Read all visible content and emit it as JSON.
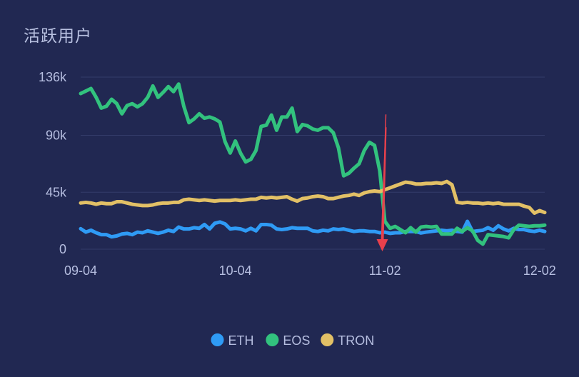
{
  "chart_data": {
    "type": "line",
    "title": "活跃用户",
    "xlabel": "",
    "ylabel": "",
    "ylim": [
      0,
      136000
    ],
    "xlim": [
      0,
      90
    ],
    "y_ticks": [
      {
        "value": 0,
        "label": "0"
      },
      {
        "value": 45000,
        "label": "45k"
      },
      {
        "value": 90000,
        "label": "90k"
      },
      {
        "value": 136000,
        "label": "136k"
      }
    ],
    "x_ticks": [
      {
        "index": 0,
        "label": "09-04"
      },
      {
        "index": 30,
        "label": "10-04"
      },
      {
        "index": 59,
        "label": "11-02"
      },
      {
        "index": 89,
        "label": "12-02"
      }
    ],
    "grid": true,
    "legend_position": "bottom-center",
    "arrow_annotation": {
      "index": 58.5,
      "from": 102000,
      "to": 0,
      "color": "#e8404c"
    },
    "series": [
      {
        "name": "ETH",
        "color": "#2f9bf5",
        "values": [
          16200,
          13500,
          15000,
          13000,
          11500,
          11500,
          9800,
          10500,
          12000,
          12500,
          11500,
          13500,
          13000,
          14500,
          13500,
          12500,
          13500,
          15000,
          14000,
          17500,
          16000,
          16000,
          17000,
          16500,
          19500,
          16000,
          20500,
          21500,
          20000,
          16000,
          16500,
          16000,
          14500,
          16500,
          14500,
          19500,
          19500,
          19000,
          16000,
          15500,
          16000,
          17000,
          16500,
          16500,
          16500,
          14500,
          14000,
          15000,
          14500,
          16000,
          15500,
          16000,
          15000,
          14000,
          14500,
          14500,
          14000,
          14000,
          13000,
          13500,
          12500,
          13000,
          13000,
          14000,
          14000,
          14000,
          12800,
          13500,
          14000,
          14500,
          15000,
          14500,
          15000,
          14000,
          13500,
          22000,
          14000,
          14500,
          15000,
          17000,
          15000,
          18500,
          16000,
          14500,
          16500,
          15500,
          15500,
          14500,
          14000,
          15000,
          14000
        ]
      },
      {
        "name": "EOS",
        "color": "#32c27e",
        "values": [
          123000,
          125000,
          127000,
          120000,
          111500,
          113000,
          118500,
          115000,
          107000,
          113500,
          115000,
          112500,
          115000,
          120000,
          129000,
          120000,
          124000,
          128500,
          124500,
          130500,
          113000,
          100000,
          103000,
          107000,
          103500,
          104500,
          103000,
          100500,
          85000,
          76000,
          85500,
          76000,
          69000,
          71000,
          78000,
          97000,
          98000,
          106000,
          94000,
          104500,
          104500,
          111500,
          93000,
          98500,
          97500,
          95000,
          94000,
          96000,
          96000,
          92000,
          80000,
          58000,
          60000,
          64000,
          67500,
          78000,
          84500,
          82000,
          62000,
          22000,
          16500,
          18000,
          15500,
          13000,
          17000,
          13500,
          17500,
          18000,
          17500,
          18000,
          12000,
          12000,
          12000,
          16500,
          14000,
          17000,
          14500,
          7000,
          4000,
          11500,
          11000,
          10500,
          10000,
          9000,
          15500,
          19000,
          18500,
          18000,
          18500,
          18500,
          19000
        ]
      },
      {
        "name": "TRON",
        "color": "#e2c066",
        "values": [
          36500,
          37000,
          36500,
          35500,
          36500,
          36000,
          36000,
          37500,
          37500,
          36500,
          35500,
          35000,
          34500,
          34500,
          35000,
          36000,
          36500,
          36500,
          37000,
          37000,
          39000,
          39500,
          39000,
          38500,
          39000,
          38500,
          38000,
          38500,
          38500,
          38500,
          39000,
          38500,
          39000,
          39500,
          39500,
          41000,
          40500,
          41000,
          40500,
          41000,
          41500,
          39500,
          38000,
          40000,
          40500,
          41500,
          42000,
          41500,
          40000,
          40000,
          41000,
          42000,
          42500,
          43500,
          42500,
          44500,
          45500,
          46000,
          45500,
          47000,
          48500,
          50000,
          51500,
          53000,
          52500,
          51500,
          51500,
          52000,
          52000,
          52500,
          52000,
          53500,
          51000,
          37000,
          36500,
          37000,
          36500,
          36500,
          36000,
          36500,
          36000,
          36500,
          35500,
          35500,
          35500,
          35500,
          34000,
          33000,
          28500,
          30500,
          29000
        ]
      }
    ]
  }
}
